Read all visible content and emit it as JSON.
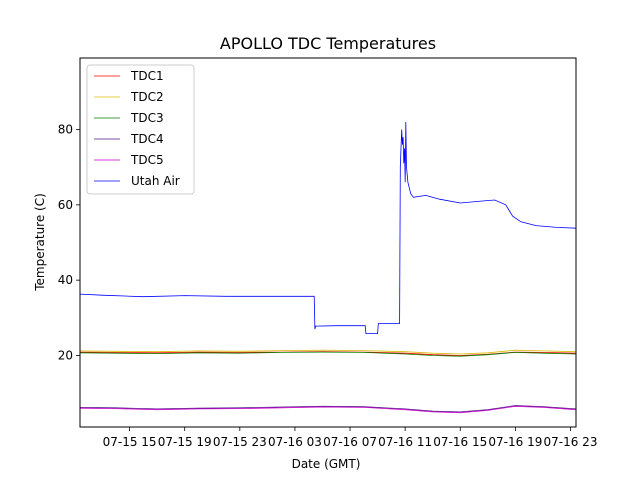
{
  "chart_data": {
    "type": "line",
    "title": "APOLLO TDC Temperatures",
    "xlabel": "Date (GMT)",
    "ylabel": "Temperature (C)",
    "xlim": [
      11.4,
      47.4
    ],
    "ylim": [
      1,
      99
    ],
    "grid": false,
    "legend_position": "upper-left",
    "x_unit": "hours since 07-15 00:00 GMT",
    "x_ticks": [
      {
        "value": 15,
        "label": "07-15 15"
      },
      {
        "value": 19,
        "label": "07-15 19"
      },
      {
        "value": 23,
        "label": "07-15 23"
      },
      {
        "value": 27,
        "label": "07-16 03"
      },
      {
        "value": 31,
        "label": "07-16 07"
      },
      {
        "value": 35,
        "label": "07-16 11"
      },
      {
        "value": 39,
        "label": "07-16 15"
      },
      {
        "value": 43,
        "label": "07-16 19"
      },
      {
        "value": 47,
        "label": "07-16 23"
      }
    ],
    "y_ticks": [
      {
        "value": 20,
        "label": "20"
      },
      {
        "value": 40,
        "label": "40"
      },
      {
        "value": 60,
        "label": "60"
      },
      {
        "value": 80,
        "label": "80"
      }
    ],
    "series": [
      {
        "name": "TDC1",
        "color": "#ff0000",
        "x": [
          11.4,
          14,
          17,
          20,
          23,
          26,
          29,
          32,
          35,
          37,
          39,
          41,
          43,
          45,
          47.4
        ],
        "y": [
          20.9,
          20.8,
          20.7,
          20.9,
          20.8,
          20.9,
          21.0,
          20.9,
          20.6,
          20.2,
          20.0,
          20.3,
          20.9,
          20.8,
          20.6
        ]
      },
      {
        "name": "TDC2",
        "color": "#ddbb00",
        "x": [
          11.4,
          14,
          17,
          20,
          23,
          26,
          29,
          32,
          35,
          37,
          39,
          41,
          43,
          45,
          47.4
        ],
        "y": [
          21.2,
          21.1,
          21.0,
          21.2,
          21.1,
          21.3,
          21.4,
          21.3,
          21.0,
          20.6,
          20.4,
          20.7,
          21.4,
          21.2,
          21.0
        ]
      },
      {
        "name": "TDC3",
        "color": "#008000",
        "x": [
          11.4,
          14,
          17,
          20,
          23,
          26,
          29,
          32,
          35,
          37,
          39,
          41,
          43,
          45,
          47.4
        ],
        "y": [
          20.7,
          20.6,
          20.5,
          20.7,
          20.6,
          20.8,
          20.9,
          20.8,
          20.4,
          20.0,
          19.8,
          20.2,
          20.8,
          20.6,
          20.4
        ]
      },
      {
        "name": "TDC4",
        "color": "#551a8b",
        "x": [
          11.4,
          14,
          17,
          20,
          23,
          26,
          29,
          32,
          35,
          37,
          39,
          41,
          43,
          45,
          47.4
        ],
        "y": [
          6.2,
          6.1,
          5.8,
          6.0,
          6.1,
          6.3,
          6.5,
          6.4,
          5.8,
          5.2,
          5.0,
          5.6,
          6.7,
          6.4,
          5.8
        ]
      },
      {
        "name": "TDC5",
        "color": "#cc00cc",
        "x": [
          11.4,
          14,
          17,
          20,
          23,
          26,
          29,
          32,
          35,
          37,
          39,
          41,
          43,
          45,
          47.4
        ],
        "y": [
          6.0,
          5.9,
          5.6,
          5.8,
          5.9,
          6.1,
          6.3,
          6.2,
          5.6,
          5.0,
          4.8,
          5.4,
          6.5,
          6.2,
          5.6
        ]
      },
      {
        "name": "Utah Air",
        "color": "#0000ff",
        "x": [
          11.4,
          13,
          16,
          19,
          22,
          25,
          28.4,
          28.45,
          28.5,
          30,
          31.5,
          32.1,
          32.15,
          33,
          33.05,
          34.6,
          34.65,
          34.75,
          34.8,
          34.85,
          34.9,
          34.95,
          35.0,
          35.05,
          35.1,
          35.2,
          35.4,
          35.6,
          36.5,
          37.5,
          39,
          40.5,
          41.5,
          42.3,
          42.8,
          43.4,
          44.5,
          46,
          47.4
        ],
        "y": [
          36.3,
          36.0,
          35.6,
          35.9,
          35.7,
          35.7,
          35.7,
          27.0,
          27.8,
          27.9,
          27.9,
          27.9,
          25.8,
          25.8,
          28.5,
          28.5,
          70.0,
          80.0,
          76.0,
          78.0,
          71.0,
          75.0,
          66.0,
          82.0,
          70.0,
          66.0,
          63.0,
          62.0,
          62.5,
          61.5,
          60.5,
          61.0,
          61.3,
          60.0,
          57.0,
          55.5,
          54.5,
          54.0,
          53.8
        ]
      }
    ]
  }
}
